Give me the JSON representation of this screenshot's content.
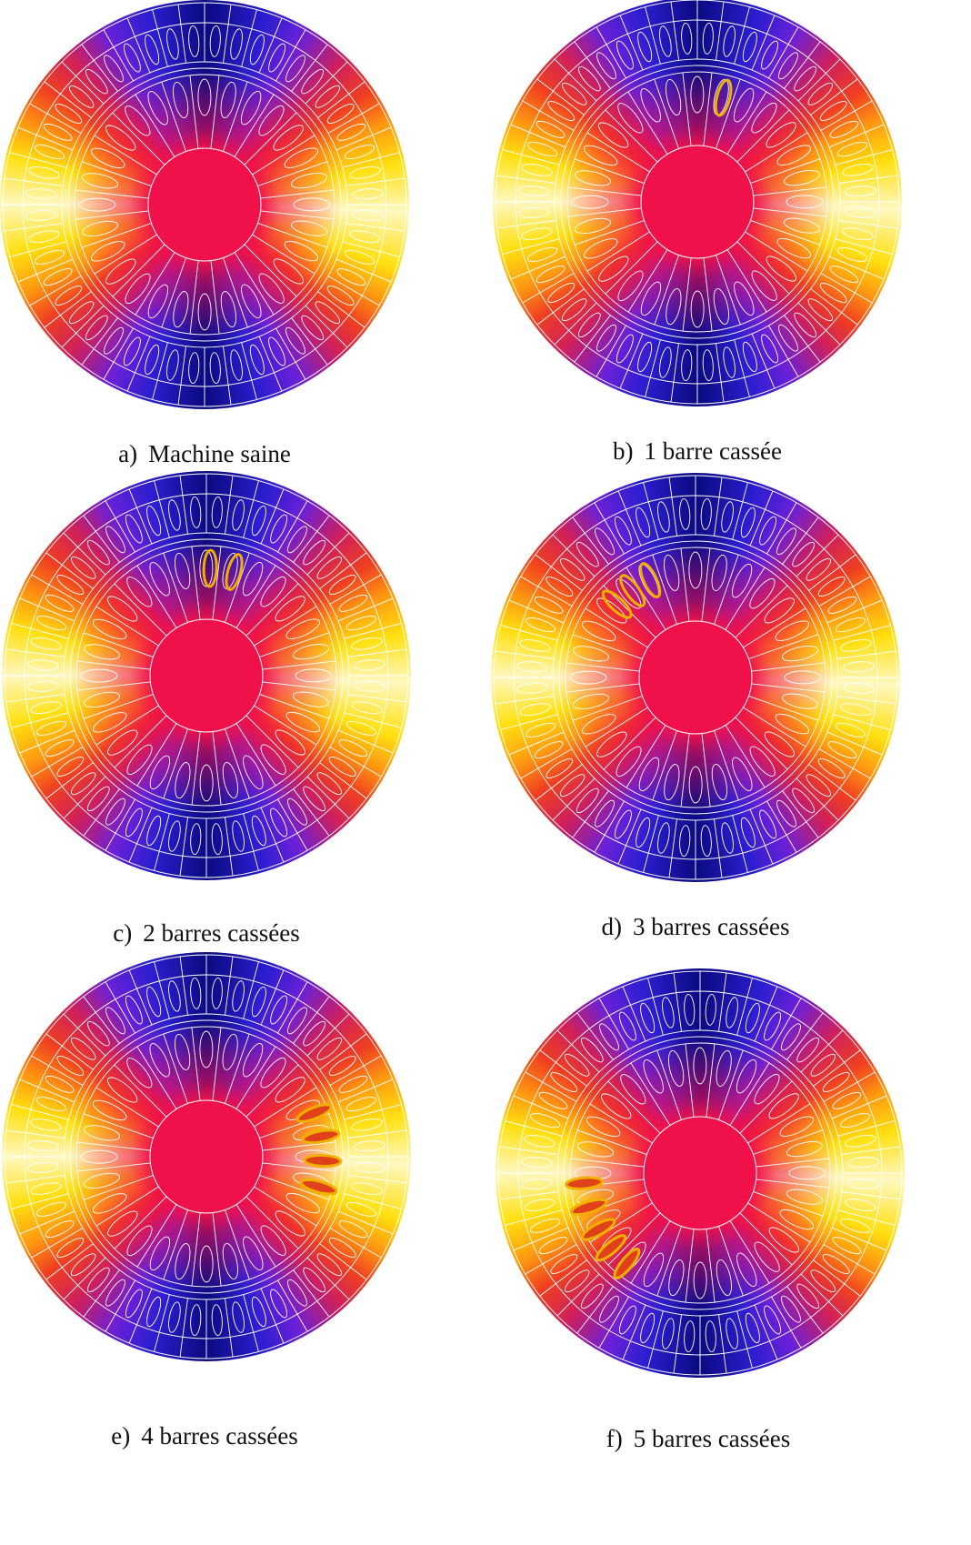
{
  "figures": [
    {
      "label": "a)",
      "caption": "Machine saine"
    },
    {
      "label": "b)",
      "caption": "1 barre cassée"
    },
    {
      "label": "c)",
      "caption": "2 barres cassées"
    },
    {
      "label": "d)",
      "caption": "3 barres cassées"
    },
    {
      "label": "e)",
      "caption": "4 barres cassées"
    },
    {
      "label": "f)",
      "caption": "5 barres cassées"
    }
  ]
}
